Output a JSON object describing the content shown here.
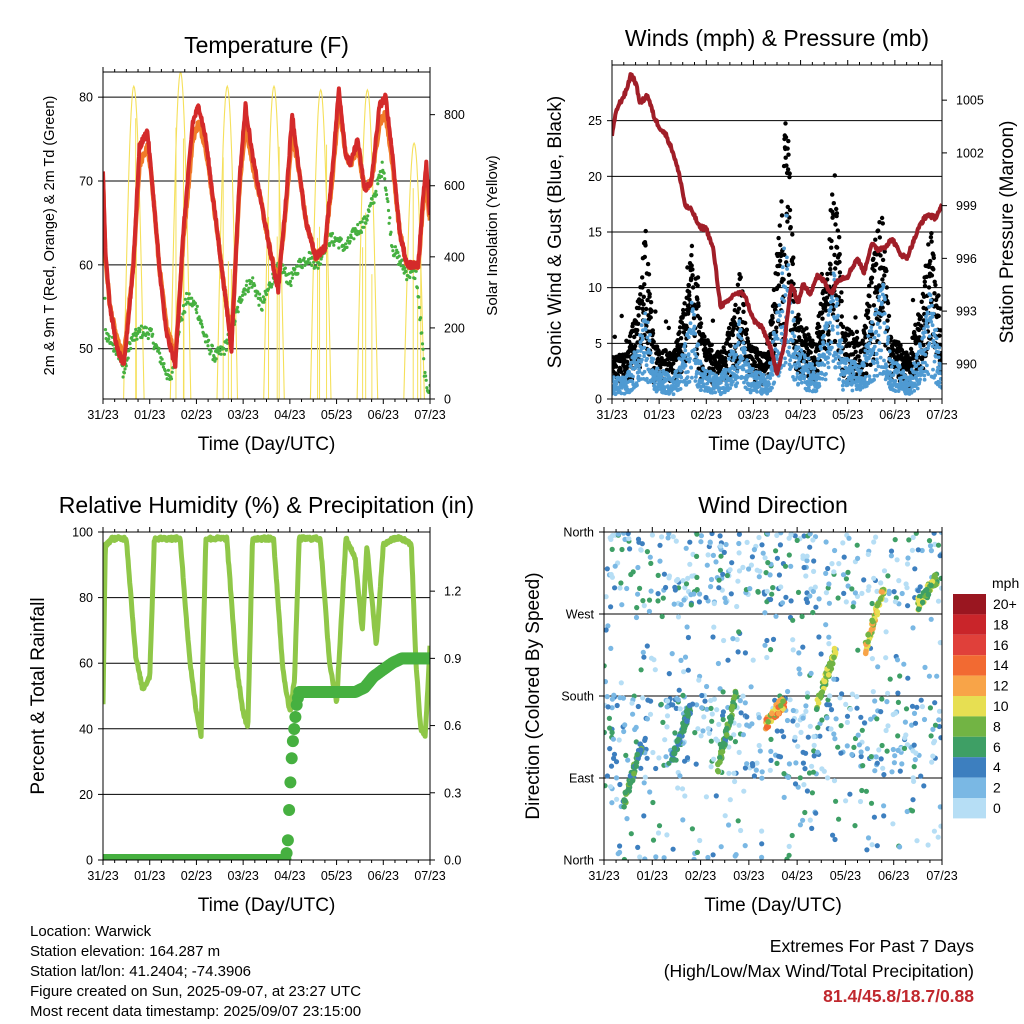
{
  "chart_data": [
    {
      "type": "line",
      "title": "Temperature (F)",
      "xlabel": "Time (Day/UTC)",
      "ylabel": "2m & 9m T (Red, Orange) & 2m Td (Green)",
      "y2label": "Solar Insolation (Yellow)",
      "x_ticks": [
        "31/23",
        "01/23",
        "02/23",
        "03/23",
        "04/23",
        "05/23",
        "06/23",
        "07/23"
      ],
      "x_range_days": [
        0,
        7
      ],
      "ylim": [
        44,
        83
      ],
      "y_ticks": [
        50,
        60,
        70,
        80
      ],
      "y2lim": [
        0,
        920
      ],
      "y2_ticks": [
        0,
        200,
        400,
        600,
        800
      ],
      "grid": "horizontal",
      "series": [
        {
          "color": "#d42a2a",
          "days": [
            0,
            0.05,
            0.15,
            0.3,
            0.45,
            0.65,
            0.78,
            0.95,
            1.05,
            1.2,
            1.35,
            1.55,
            1.72,
            1.92,
            2.05,
            2.2,
            2.4,
            2.6,
            2.75,
            2.92,
            3.05,
            3.2,
            3.4,
            3.6,
            3.75,
            3.92,
            4.05,
            4.2,
            4.35,
            4.55,
            4.75,
            4.92,
            5.05,
            5.2,
            5.3,
            5.45,
            5.6,
            5.75,
            5.92,
            6.05,
            6.2,
            6.35,
            6.5,
            6.65,
            6.75,
            6.85,
            6.92,
            7
          ],
          "values": [
            71,
            62,
            55,
            50,
            48,
            60,
            74,
            76,
            70,
            60,
            52,
            48,
            64,
            77,
            79,
            75,
            66,
            57,
            50,
            70,
            79,
            73,
            67,
            61,
            57,
            68,
            78,
            71,
            65,
            61,
            62,
            72,
            81,
            73,
            72,
            75,
            69,
            70,
            79,
            80,
            73,
            64,
            60,
            60,
            60,
            68,
            72,
            66
          ]
        },
        {
          "color": "#f07a28",
          "days": [
            0,
            0.05,
            0.15,
            0.3,
            0.45,
            0.65,
            0.78,
            0.95,
            1.05,
            1.2,
            1.35,
            1.55,
            1.72,
            1.92,
            2.05,
            2.2,
            2.4,
            2.6,
            2.75,
            2.92,
            3.05,
            3.2,
            3.4,
            3.6,
            3.75,
            3.92,
            4.05,
            4.2,
            4.35,
            4.55,
            4.75,
            4.92,
            5.05,
            5.2,
            5.3,
            5.45,
            5.6,
            5.75,
            5.92,
            6.05,
            6.2,
            6.35,
            6.5,
            6.65,
            6.75,
            6.85,
            6.92,
            7
          ],
          "values": [
            70,
            61,
            55,
            51,
            49,
            60,
            72,
            74,
            70,
            60,
            53,
            49,
            63,
            75,
            77,
            74,
            66,
            57,
            51,
            69,
            77,
            72,
            67,
            61,
            58,
            67,
            76,
            71,
            65,
            61,
            62,
            71,
            79,
            73,
            72,
            74,
            69,
            70,
            77,
            78,
            72,
            64,
            60,
            60,
            60,
            67,
            70,
            65
          ]
        },
        {
          "color": "#46b040",
          "days": [
            0,
            0.05,
            0.15,
            0.3,
            0.45,
            0.6,
            0.8,
            1.0,
            1.15,
            1.3,
            1.45,
            1.6,
            1.8,
            2.0,
            2.2,
            2.4,
            2.6,
            2.8,
            3.0,
            3.2,
            3.4,
            3.6,
            3.8,
            4.0,
            4.2,
            4.4,
            4.6,
            4.8,
            5.0,
            5.2,
            5.4,
            5.6,
            5.8,
            6.0,
            6.2,
            6.4,
            6.5,
            6.6,
            6.7,
            6.8,
            6.9,
            7
          ],
          "values": [
            70,
            52,
            51,
            50,
            47,
            51,
            52,
            52,
            50,
            48,
            46,
            52,
            56,
            55,
            51,
            49,
            50,
            53,
            57,
            58,
            55,
            58,
            60,
            58,
            60,
            61,
            60,
            63,
            63,
            62,
            64,
            65,
            68,
            72,
            62,
            60,
            59,
            59,
            59,
            53,
            46,
            45
          ]
        },
        {
          "color": "#f5e05a",
          "axis": "y2",
          "peak_days": [
            0.66,
            1.66,
            2.66,
            3.66,
            4.66,
            5.66,
            6.66
          ],
          "peak_values": [
            880,
            920,
            880,
            880,
            870,
            870,
            720
          ]
        }
      ]
    },
    {
      "type": "scatter",
      "title": "Winds (mph) & Pressure (mb)",
      "xlabel": "Time (Day/UTC)",
      "ylabel": "Sonic Wind & Gust (Blue, Black)",
      "y2label": "Station Pressure (Maroon)",
      "x_ticks": [
        "31/23",
        "01/23",
        "02/23",
        "03/23",
        "04/23",
        "05/23",
        "06/23",
        "07/23"
      ],
      "x_range_days": [
        0,
        7
      ],
      "ylim": [
        0,
        30
      ],
      "y_ticks": [
        0,
        5,
        10,
        15,
        20,
        25
      ],
      "y2lim": [
        988,
        1007
      ],
      "y2_ticks": [
        990,
        993,
        996,
        999,
        1002,
        1005
      ],
      "grid": "horizontal",
      "gust_envelope": {
        "color": "#000000",
        "days": [
          0,
          0.3,
          0.6,
          0.7,
          0.9,
          1.3,
          1.6,
          1.7,
          1.9,
          2.3,
          2.6,
          2.7,
          2.9,
          3.3,
          3.6,
          3.7,
          3.9,
          4.3,
          4.6,
          4.7,
          4.9,
          5.3,
          5.6,
          5.75,
          5.9,
          6.3,
          6.6,
          6.75,
          7
        ],
        "values": [
          4,
          4,
          10,
          16,
          5,
          4,
          10,
          14,
          6,
          4,
          8,
          12,
          5,
          4,
          18,
          27,
          8,
          5,
          14,
          22,
          7,
          5,
          15,
          17,
          6,
          4,
          10,
          16,
          5
        ]
      },
      "wind_envelope": {
        "color": "#4f9ad2",
        "days": [
          0,
          0.3,
          0.6,
          0.7,
          0.9,
          1.3,
          1.6,
          1.7,
          1.9,
          2.3,
          2.6,
          2.7,
          2.9,
          3.3,
          3.6,
          3.7,
          3.9,
          4.3,
          4.6,
          4.7,
          4.9,
          5.3,
          5.6,
          5.75,
          5.9,
          6.3,
          6.6,
          6.75,
          7
        ],
        "values": [
          2,
          2,
          6,
          9,
          3,
          2,
          6,
          9,
          3,
          2,
          5,
          7,
          3,
          2,
          11,
          17,
          5,
          3,
          8,
          12,
          4,
          3,
          9,
          11,
          4,
          2,
          6,
          10,
          3
        ]
      },
      "pressure": {
        "color": "#a01e28",
        "days": [
          0,
          0.1,
          0.2,
          0.3,
          0.4,
          0.5,
          0.6,
          0.75,
          0.9,
          1.0,
          1.15,
          1.3,
          1.45,
          1.55,
          1.7,
          1.85,
          2.0,
          2.15,
          2.3,
          2.45,
          2.6,
          2.8,
          3.0,
          3.2,
          3.35,
          3.5,
          3.65,
          3.8,
          3.95,
          4.05,
          4.2,
          4.35,
          4.5,
          4.65,
          4.8,
          5.0,
          5.2,
          5.35,
          5.5,
          5.65,
          5.8,
          5.95,
          6.1,
          6.25,
          6.4,
          6.55,
          6.7,
          6.85,
          7
        ],
        "values": [
          1003,
          1004.5,
          1005,
          1005.5,
          1006.5,
          1006,
          1004.8,
          1005.3,
          1004,
          1003.5,
          1003,
          1002,
          1000.5,
          999,
          998.7,
          997.8,
          997.7,
          996.5,
          993.3,
          993.5,
          994,
          994,
          992.5,
          992,
          991,
          989.5,
          991,
          994.5,
          993.5,
          994.5,
          994,
          995,
          994.7,
          994,
          994.8,
          995,
          996,
          995.2,
          996.8,
          996.5,
          996.7,
          997.1,
          996.3,
          996,
          997,
          998,
          998.5,
          998.3,
          999
        ]
      }
    },
    {
      "type": "line",
      "title": "Relative Humidity (%) & Precipitation (in)",
      "xlabel": "Time (Day/UTC)",
      "ylabel": "Percent & Total Rainfall",
      "x_ticks": [
        "31/23",
        "01/23",
        "02/23",
        "03/23",
        "04/23",
        "05/23",
        "06/23",
        "07/23"
      ],
      "x_range_days": [
        0,
        7
      ],
      "ylim": [
        0,
        100
      ],
      "y_ticks": [
        0,
        20,
        40,
        60,
        80,
        100
      ],
      "y2lim": [
        0,
        1.464
      ],
      "y2_ticks": [
        "0.0",
        "0.3",
        "0.6",
        "0.9",
        "1.2"
      ],
      "grid": "horizontal",
      "series": [
        {
          "color": "#8fc748",
          "days": [
            0,
            0.05,
            0.2,
            0.35,
            0.5,
            0.7,
            0.85,
            1.0,
            1.1,
            1.2,
            1.35,
            1.5,
            1.65,
            1.85,
            2.0,
            2.1,
            2.2,
            2.35,
            2.5,
            2.65,
            2.85,
            3.0,
            3.1,
            3.2,
            3.35,
            3.5,
            3.65,
            3.85,
            4.0,
            4.1,
            4.2,
            4.35,
            4.5,
            4.65,
            4.85,
            5.0,
            5.2,
            5.4,
            5.55,
            5.65,
            5.85,
            6.0,
            6.2,
            6.4,
            6.6,
            6.7,
            6.8,
            6.9,
            7
          ],
          "values": [
            47,
            96,
            98,
            98,
            98,
            62,
            52,
            56,
            98,
            98,
            98,
            98,
            98,
            62,
            45,
            38,
            98,
            98,
            98,
            98,
            60,
            45,
            40,
            98,
            98,
            98,
            98,
            58,
            45,
            55,
            98,
            98,
            98,
            98,
            60,
            48,
            98,
            92,
            70,
            96,
            65,
            96,
            98,
            98,
            96,
            60,
            40,
            38,
            65
          ]
        },
        {
          "color": "#46b040",
          "axis": "y2",
          "days": [
            0,
            3.9,
            3.95,
            4.0,
            4.05,
            4.1,
            4.15,
            4.2,
            4.6,
            5.0,
            5.2,
            5.4,
            5.6,
            5.8,
            6.0,
            6.2,
            6.4,
            6.6,
            6.8,
            7
          ],
          "values": [
            0,
            0,
            0.05,
            0.3,
            0.5,
            0.6,
            0.7,
            0.75,
            0.75,
            0.75,
            0.75,
            0.75,
            0.77,
            0.82,
            0.85,
            0.88,
            0.9,
            0.9,
            0.9,
            0.9
          ]
        }
      ]
    },
    {
      "type": "scatter",
      "title": "Wind Direction",
      "xlabel": "Time (Day/UTC)",
      "ylabel": "Direction (Colored By Speed)",
      "x_ticks": [
        "31/23",
        "01/23",
        "02/23",
        "03/23",
        "04/23",
        "05/23",
        "06/23",
        "07/23"
      ],
      "x_range_days": [
        0,
        7
      ],
      "ylim": [
        0,
        360
      ],
      "y_ticks": [
        "North",
        "East",
        "South",
        "West",
        "North"
      ],
      "y_tick_values": [
        0,
        90,
        180,
        270,
        360
      ],
      "grid": "horizontal",
      "legend": {
        "position": "right",
        "title": "mph",
        "labels": [
          "20+",
          "18",
          "16",
          "14",
          "12",
          "10",
          "8",
          "6",
          "4",
          "2",
          "0"
        ],
        "colors": [
          "#9a1620",
          "#c9252a",
          "#e0403a",
          "#f26a32",
          "#f8a448",
          "#e7df52",
          "#72b444",
          "#3e9f65",
          "#3d7fbf",
          "#7ab8e4",
          "#b6def5"
        ]
      }
    }
  ],
  "footer": {
    "location": "Location: Warwick",
    "elevation": "Station elevation: 164.287 m",
    "latlon": "Station lat/lon: 41.2404; -74.3906",
    "created": "Figure created on Sun, 2025-09-07, at 23:27 UTC",
    "recent": "Most recent data timestamp: 2025/09/07 23:15:00",
    "extremes_title": "Extremes For Past 7 Days",
    "extremes_sub": "(High/Low/Max Wind/Total Precipitation)",
    "extremes_values": "81.4/45.8/18.7/0.88"
  }
}
